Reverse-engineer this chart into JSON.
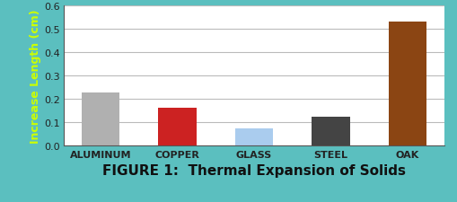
{
  "categories": [
    "ALUMINUM",
    "COPPER",
    "GLASS",
    "STEEL",
    "OAK"
  ],
  "values": [
    0.225,
    0.162,
    0.072,
    0.122,
    0.53
  ],
  "bar_colors": [
    "#b0b0b0",
    "#cc2222",
    "#aaccee",
    "#444444",
    "#8B4513"
  ],
  "background_color": "#5bbfbf",
  "plot_bg_color": "#ffffff",
  "title": "FIGURE 1:  Thermal Expansion of Solids",
  "ylabel": "Increase Length (cm)",
  "ylabel_color": "#ccff00",
  "title_fontsize": 11,
  "ylabel_fontsize": 9,
  "tick_fontsize": 8,
  "xtick_fontsize": 8,
  "ylim": [
    0.0,
    0.6
  ],
  "yticks": [
    0.0,
    0.1,
    0.2,
    0.3,
    0.4,
    0.5,
    0.6
  ],
  "grid_color": "#bbbbbb",
  "spine_color": "#555555"
}
